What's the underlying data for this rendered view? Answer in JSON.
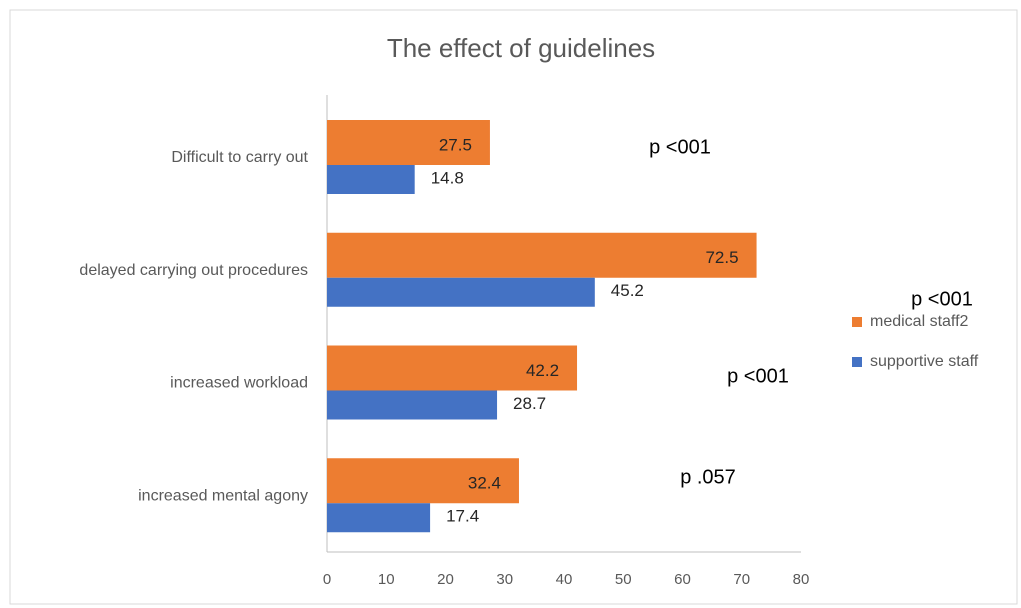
{
  "chart_data": {
    "type": "bar",
    "orientation": "horizontal",
    "title": "The effect of  guidelines",
    "categories": [
      "Difficult to carry out",
      "delayed carrying out procedures",
      "increased workload",
      "increased mental agony"
    ],
    "series": [
      {
        "name": "medical staff2",
        "color": "#ed7d31",
        "values": [
          27.5,
          72.5,
          42.2,
          32.4
        ]
      },
      {
        "name": "supportive staff",
        "color": "#4472c4",
        "values": [
          14.8,
          45.2,
          28.7,
          17.4
        ]
      }
    ],
    "xlim": [
      0,
      80
    ],
    "xticks": [
      0,
      10,
      20,
      30,
      40,
      50,
      60,
      70,
      80
    ],
    "grid": false,
    "legend": "right",
    "annotations": [
      "p <001",
      "p <001",
      "p <001",
      "p .057"
    ]
  }
}
